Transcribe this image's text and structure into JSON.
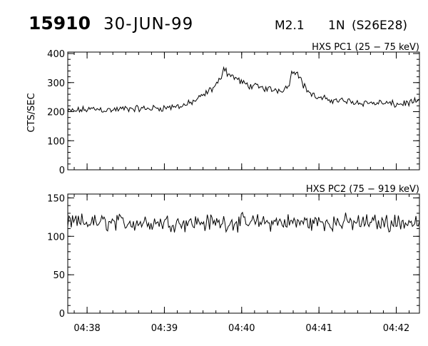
{
  "header": {
    "event_number": "15910",
    "date": "30-JUN-99",
    "class": "M2.1",
    "importance": "1N",
    "location": "(S26E28)"
  },
  "chart_data": [
    {
      "type": "line",
      "title": "HXS PC1 (25 − 75 keV)",
      "ylabel": "CTS/SEC",
      "xlabel": "",
      "ylim": [
        0,
        405
      ],
      "yticks": [
        0,
        100,
        200,
        300,
        400
      ],
      "ytick_labels": [
        "0",
        "100",
        "200",
        "300",
        "400"
      ],
      "xticks": [
        "04:38",
        "04:39",
        "04:40",
        "04:41",
        "04:42"
      ],
      "xlim_minutes": [
        37.75,
        42.3
      ],
      "xtick_minutes": [
        38,
        39,
        40,
        41,
        42
      ],
      "series": [
        {
          "x": [
            37.75,
            37.9,
            38.1,
            38.3,
            38.5,
            38.7,
            38.9,
            39.1,
            39.3,
            39.45,
            39.55,
            39.65,
            39.72,
            39.77,
            39.82,
            39.9,
            40.0,
            40.1,
            40.2,
            40.3,
            40.4,
            40.5,
            40.6,
            40.65,
            40.72,
            40.8,
            40.9,
            41.0,
            41.2,
            41.4,
            41.6,
            41.8,
            42.0,
            42.15,
            42.3
          ],
          "values": [
            200,
            205,
            210,
            205,
            210,
            210,
            212,
            215,
            225,
            245,
            265,
            285,
            310,
            355,
            330,
            320,
            300,
            290,
            285,
            280,
            275,
            275,
            285,
            335,
            340,
            290,
            260,
            245,
            240,
            235,
            230,
            230,
            225,
            230,
            235
          ]
        }
      ]
    },
    {
      "type": "line",
      "title": "HXS PC2 (75 − 919 keV)",
      "ylabel": "",
      "xlabel": "",
      "ylim": [
        0,
        155
      ],
      "yticks": [
        0,
        50,
        100,
        150
      ],
      "ytick_labels": [
        "0",
        "50",
        "100",
        "150"
      ],
      "xticks": [
        "04:38",
        "04:39",
        "04:40",
        "04:41",
        "04:42"
      ],
      "xlim_minutes": [
        37.75,
        42.3
      ],
      "xtick_minutes": [
        38,
        39,
        40,
        41,
        42
      ],
      "series": [
        {
          "x": [
            37.75,
            42.3
          ],
          "values": [
            118,
            118
          ]
        }
      ]
    }
  ]
}
